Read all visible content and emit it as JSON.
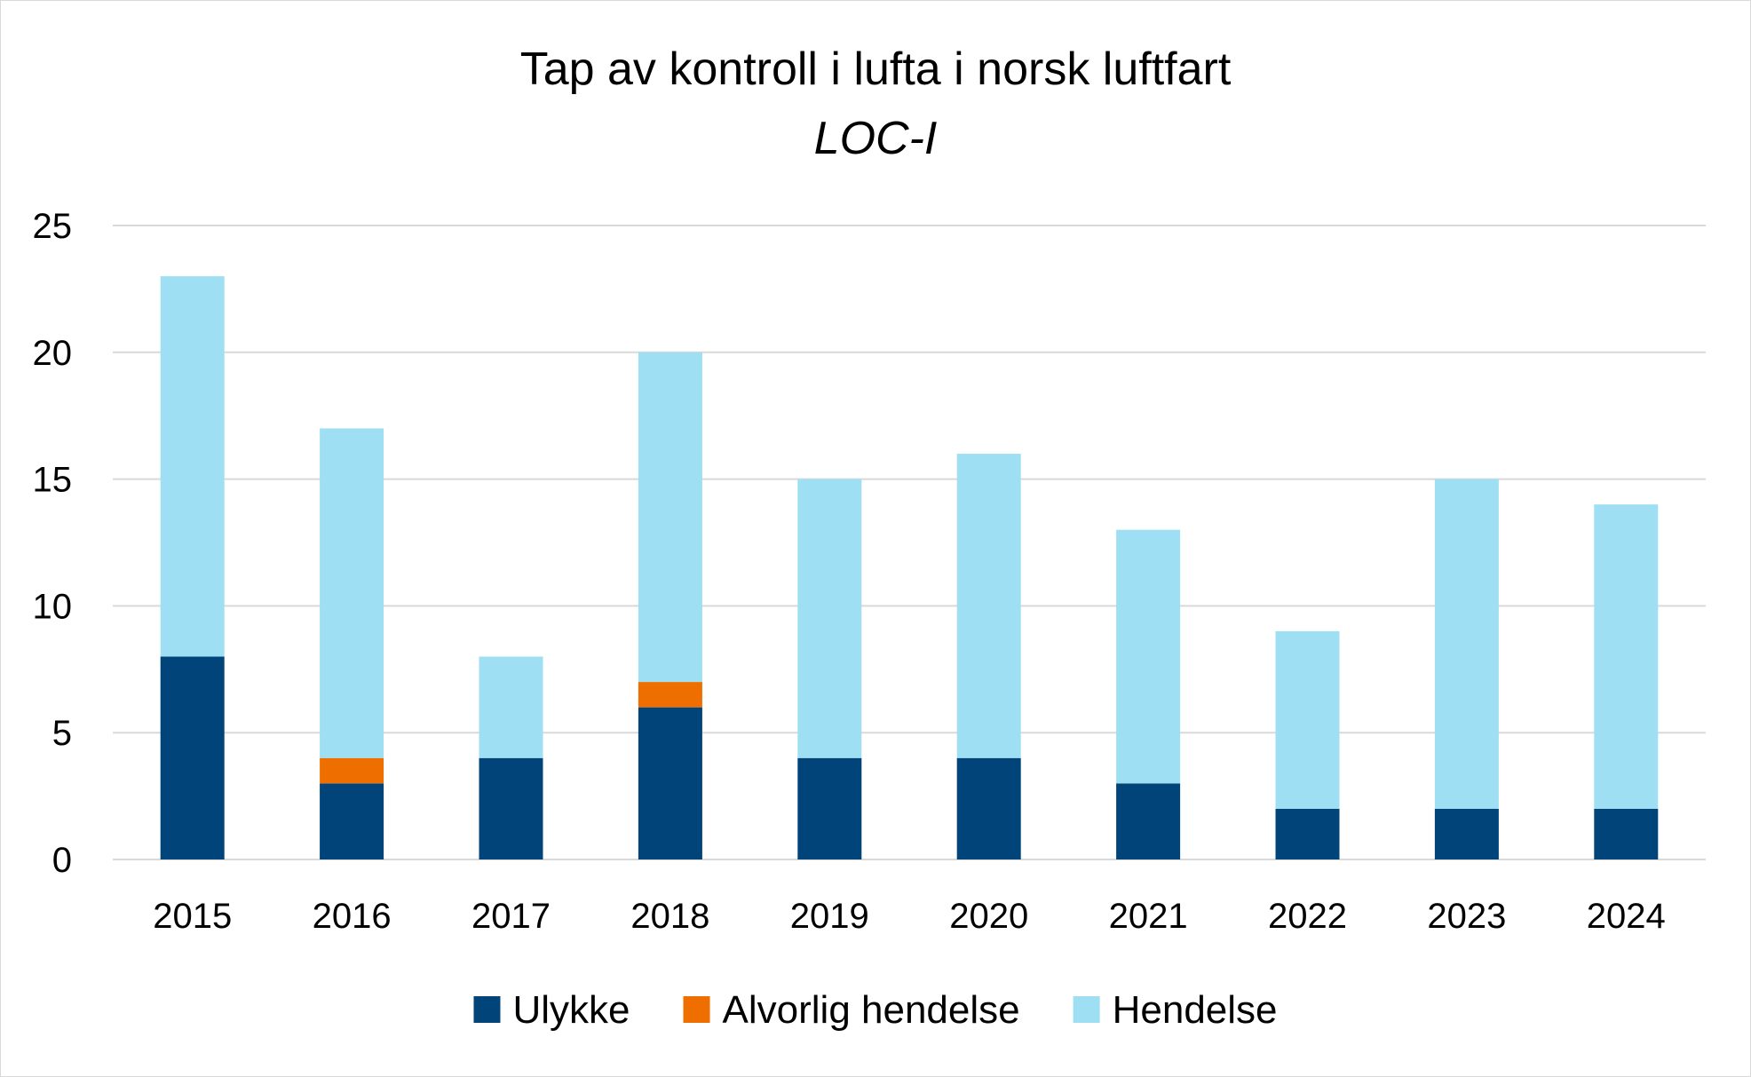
{
  "chart_data": {
    "type": "bar",
    "stacked": true,
    "title": "Tap av kontroll i lufta i norsk luftfart",
    "subtitle": "LOC-I",
    "xlabel": "",
    "ylabel": "",
    "categories": [
      "2015",
      "2016",
      "2017",
      "2018",
      "2019",
      "2020",
      "2021",
      "2022",
      "2023",
      "2024"
    ],
    "series": [
      {
        "name": "Ulykke",
        "color": "#004479",
        "values": [
          8,
          3,
          4,
          6,
          4,
          4,
          3,
          2,
          2,
          2
        ]
      },
      {
        "name": "Alvorlig hendelse",
        "color": "#EE6F00",
        "values": [
          0,
          1,
          0,
          1,
          0,
          0,
          0,
          0,
          0,
          0
        ]
      },
      {
        "name": "Hendelse",
        "color": "#9EDFF3",
        "values": [
          15,
          13,
          4,
          13,
          11,
          12,
          10,
          7,
          13,
          12
        ]
      }
    ],
    "ylim": [
      0,
      25
    ],
    "yticks": [
      0,
      5,
      10,
      15,
      20,
      25
    ],
    "grid": true,
    "gridline_color": "#d9d9d9",
    "legend_position": "bottom"
  }
}
